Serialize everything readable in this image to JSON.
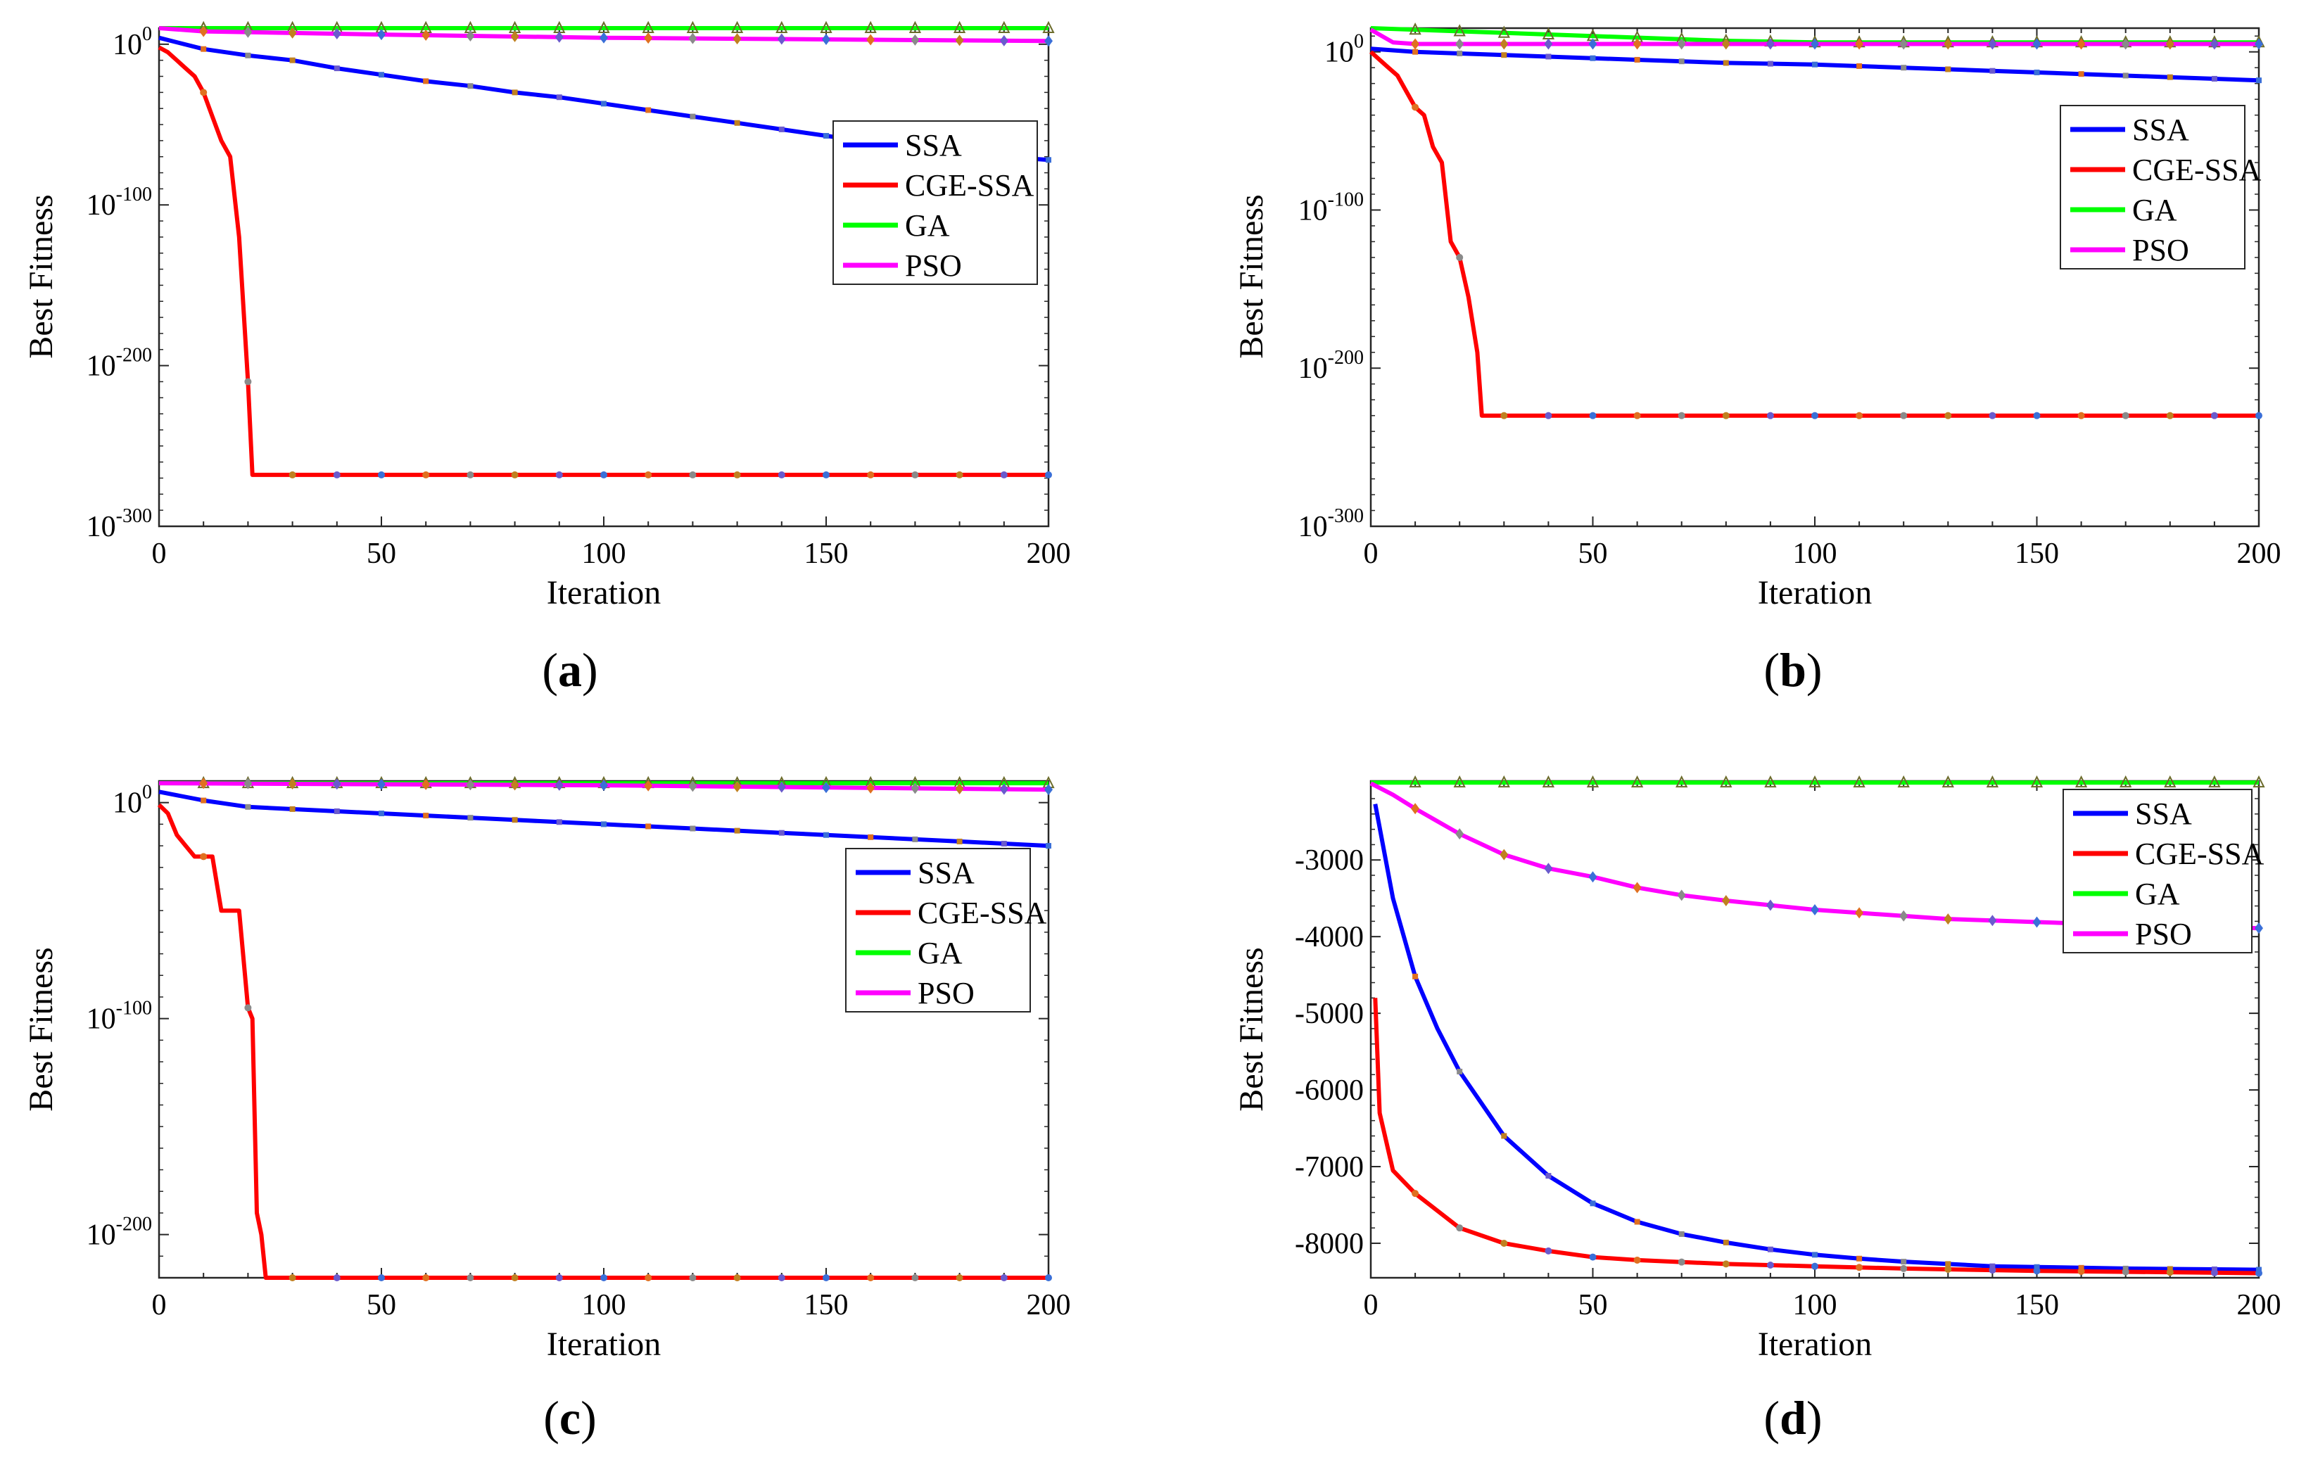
{
  "series_colors": {
    "SSA": "#0000ff",
    "CGE-SSA": "#ff0000",
    "GA": "#00ff00",
    "PSO": "#ff00ff"
  },
  "chart_data": [
    {
      "panel": "a",
      "panel_label": {
        "open": "(",
        "letter": "a",
        "close": ")"
      },
      "type": "line",
      "yscale": "log",
      "xlabel": "Iteration",
      "ylabel": "Best Fitness",
      "xlim": [
        0,
        200
      ],
      "ylim_exponent": [
        -300,
        10
      ],
      "xticks": [
        0,
        50,
        100,
        150,
        200
      ],
      "yticks": [
        {
          "base": "10",
          "exp": "0",
          "value": 0
        },
        {
          "base": "10",
          "exp": "-100",
          "value": -100
        },
        {
          "base": "10",
          "exp": "-200",
          "value": -200
        },
        {
          "base": "10",
          "exp": "-300",
          "value": -300
        }
      ],
      "legend": {
        "position": "upper-right",
        "entries": [
          "SSA",
          "CGE-SSA",
          "GA",
          "PSO"
        ]
      },
      "series": [
        {
          "name": "SSA",
          "x": [
            0,
            10,
            20,
            30,
            40,
            50,
            60,
            70,
            80,
            90,
            100,
            110,
            120,
            130,
            140,
            150,
            160,
            170,
            180,
            190,
            200
          ],
          "values": [
            4,
            -3,
            -7,
            -10,
            -15,
            -19,
            -23,
            -26,
            -30,
            -33,
            -37,
            -41,
            -45,
            -49,
            -53,
            -57,
            -61,
            -64,
            -67,
            -70,
            -72
          ]
        },
        {
          "name": "CGE-SSA",
          "x": [
            0,
            2,
            4,
            6,
            8,
            10,
            12,
            14,
            16,
            18,
            20,
            21,
            25,
            30,
            40,
            50,
            60,
            70,
            80,
            90,
            100,
            110,
            120,
            130,
            140,
            150,
            160,
            170,
            180,
            190,
            200
          ],
          "values": [
            -2,
            -5,
            -10,
            -15,
            -20,
            -30,
            -45,
            -60,
            -70,
            -120,
            -210,
            -268,
            -268,
            -268,
            -268,
            -268,
            -268,
            -268,
            -268,
            -268,
            -268,
            -268,
            -268,
            -268,
            -268,
            -268,
            -268,
            -268,
            -268,
            -268,
            -268
          ]
        },
        {
          "name": "GA",
          "x": [
            0,
            200
          ],
          "values": [
            10,
            10
          ]
        },
        {
          "name": "PSO",
          "x": [
            0,
            10,
            50,
            100,
            150,
            200
          ],
          "values": [
            10,
            8,
            6,
            4,
            3,
            2
          ]
        }
      ]
    },
    {
      "panel": "b",
      "panel_label": {
        "open": "(",
        "letter": "b",
        "close": ")"
      },
      "type": "line",
      "yscale": "log",
      "xlabel": "Iteration",
      "ylabel": "Best Fitness",
      "xlim": [
        0,
        200
      ],
      "ylim_exponent": [
        -300,
        15
      ],
      "xticks": [
        0,
        50,
        100,
        150,
        200
      ],
      "yticks": [
        {
          "base": "10",
          "exp": "0",
          "value": 0
        },
        {
          "base": "10",
          "exp": "-100",
          "value": -100
        },
        {
          "base": "10",
          "exp": "-200",
          "value": -200
        },
        {
          "base": "10",
          "exp": "-300",
          "value": -300
        }
      ],
      "legend": {
        "position": "upper-right",
        "entries": [
          "SSA",
          "CGE-SSA",
          "GA",
          "PSO"
        ]
      },
      "series": [
        {
          "name": "SSA",
          "x": [
            0,
            10,
            20,
            40,
            60,
            80,
            100,
            120,
            140,
            160,
            180,
            200
          ],
          "values": [
            2,
            0,
            -1,
            -3,
            -5,
            -7,
            -8,
            -10,
            -12,
            -14,
            -16,
            -18
          ]
        },
        {
          "name": "CGE-SSA",
          "x": [
            0,
            2,
            4,
            6,
            8,
            10,
            12,
            14,
            16,
            18,
            20,
            22,
            24,
            25,
            30,
            40,
            50,
            60,
            70,
            80,
            90,
            100,
            110,
            120,
            130,
            140,
            150,
            160,
            170,
            180,
            190,
            200
          ],
          "values": [
            0,
            -5,
            -10,
            -15,
            -25,
            -35,
            -40,
            -60,
            -70,
            -120,
            -130,
            -155,
            -190,
            -230,
            -230,
            -230,
            -230,
            -230,
            -230,
            -230,
            -230,
            -230,
            -230,
            -230,
            -230,
            -230,
            -230,
            -230,
            -230,
            -230,
            -230,
            -230
          ]
        },
        {
          "name": "GA",
          "x": [
            0,
            20,
            40,
            60,
            80,
            100,
            200
          ],
          "values": [
            15,
            13,
            11,
            9,
            7,
            6,
            6
          ]
        },
        {
          "name": "PSO",
          "x": [
            0,
            5,
            10,
            200
          ],
          "values": [
            14,
            6,
            5,
            5
          ]
        }
      ]
    },
    {
      "panel": "c",
      "panel_label": {
        "open": "(",
        "letter": "c",
        "close": ")"
      },
      "type": "line",
      "yscale": "log",
      "xlabel": "Iteration",
      "ylabel": "Best Fitness",
      "xlim": [
        0,
        200
      ],
      "ylim_exponent": [
        -220,
        10
      ],
      "xticks": [
        0,
        50,
        100,
        150,
        200
      ],
      "yticks": [
        {
          "base": "10",
          "exp": "0",
          "value": 0
        },
        {
          "base": "10",
          "exp": "-100",
          "value": -100
        },
        {
          "base": "10",
          "exp": "-200",
          "value": -200
        }
      ],
      "legend": {
        "position": "center-right",
        "entries": [
          "SSA",
          "CGE-SSA",
          "GA",
          "PSO"
        ]
      },
      "series": [
        {
          "name": "SSA",
          "x": [
            0,
            10,
            20,
            40,
            60,
            80,
            100,
            120,
            140,
            160,
            180,
            200
          ],
          "values": [
            5,
            1,
            -2,
            -4,
            -6,
            -8,
            -10,
            -12,
            -14,
            -16,
            -18,
            -20
          ]
        },
        {
          "name": "CGE-SSA",
          "x": [
            0,
            2,
            4,
            6,
            8,
            10,
            12,
            14,
            16,
            18,
            20,
            21,
            22,
            23,
            24,
            30,
            40,
            50,
            60,
            70,
            80,
            90,
            100,
            110,
            120,
            130,
            140,
            150,
            160,
            170,
            180,
            190,
            200
          ],
          "values": [
            -1,
            -5,
            -15,
            -20,
            -25,
            -25,
            -25,
            -50,
            -50,
            -50,
            -95,
            -100,
            -190,
            -200,
            -222,
            -222,
            -222,
            -222,
            -222,
            -222,
            -222,
            -222,
            -222,
            -222,
            -222,
            -222,
            -222,
            -222,
            -222,
            -222,
            -222,
            -222,
            -222
          ]
        },
        {
          "name": "GA",
          "x": [
            0,
            200
          ],
          "values": [
            9,
            9
          ]
        },
        {
          "name": "PSO",
          "x": [
            0,
            100,
            200
          ],
          "values": [
            9,
            8,
            6
          ]
        }
      ]
    },
    {
      "panel": "d",
      "panel_label": {
        "open": "(",
        "letter": "d",
        "close": ")"
      },
      "type": "line",
      "yscale": "linear",
      "xlabel": "Iteration",
      "ylabel": "Best Fitness",
      "xlim": [
        0,
        200
      ],
      "ylim": [
        -8450,
        -1970
      ],
      "xticks": [
        0,
        50,
        100,
        150,
        200
      ],
      "yticks": [
        {
          "label": "-3000",
          "value": -3000
        },
        {
          "label": "-4000",
          "value": -4000
        },
        {
          "label": "-5000",
          "value": -5000
        },
        {
          "label": "-6000",
          "value": -6000
        },
        {
          "label": "-7000",
          "value": -7000
        },
        {
          "label": "-8000",
          "value": -8000
        }
      ],
      "legend": {
        "position": "upper-right",
        "entries": [
          "SSA",
          "CGE-SSA",
          "GA",
          "PSO"
        ]
      },
      "series": [
        {
          "name": "SSA",
          "x": [
            1,
            5,
            10,
            15,
            20,
            30,
            40,
            50,
            60,
            70,
            80,
            90,
            100,
            110,
            120,
            130,
            140,
            150,
            160,
            170,
            180,
            190,
            200
          ],
          "values": [
            -2270,
            -3500,
            -4520,
            -5200,
            -5760,
            -6600,
            -7120,
            -7480,
            -7720,
            -7880,
            -7990,
            -8080,
            -8150,
            -8200,
            -8240,
            -8270,
            -8300,
            -8310,
            -8320,
            -8330,
            -8335,
            -8340,
            -8345
          ]
        },
        {
          "name": "CGE-SSA",
          "x": [
            1,
            2,
            5,
            10,
            20,
            30,
            40,
            50,
            60,
            80,
            100,
            120,
            150,
            200
          ],
          "values": [
            -4800,
            -6300,
            -7050,
            -7350,
            -7800,
            -8000,
            -8100,
            -8180,
            -8220,
            -8270,
            -8300,
            -8330,
            -8360,
            -8390
          ]
        },
        {
          "name": "GA",
          "x": [
            0,
            200
          ],
          "values": [
            -1990,
            -1990
          ]
        },
        {
          "name": "PSO",
          "x": [
            0,
            5,
            10,
            20,
            30,
            40,
            50,
            60,
            70,
            80,
            90,
            100,
            110,
            120,
            130,
            140,
            150,
            160,
            170,
            180,
            190,
            200
          ],
          "values": [
            -2000,
            -2150,
            -2330,
            -2660,
            -2930,
            -3110,
            -3220,
            -3360,
            -3460,
            -3530,
            -3590,
            -3650,
            -3690,
            -3730,
            -3770,
            -3790,
            -3810,
            -3830,
            -3850,
            -3860,
            -3870,
            -3890
          ]
        }
      ]
    }
  ]
}
